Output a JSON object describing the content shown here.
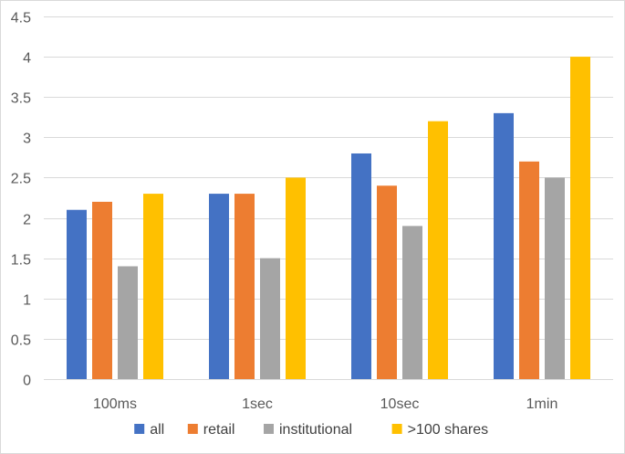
{
  "chart_data": {
    "type": "bar",
    "title": "",
    "xlabel": "",
    "ylabel": "",
    "categories": [
      "100ms",
      "1sec",
      "10sec",
      "1min"
    ],
    "ylim": [
      0,
      4.5
    ],
    "yticks": [
      0,
      0.5,
      1,
      1.5,
      2,
      2.5,
      3,
      3.5,
      4,
      4.5
    ],
    "ytick_labels": [
      "0",
      "0.5",
      "1",
      "1.5",
      "2",
      "2.5",
      "3",
      "3.5",
      "4",
      "4.5"
    ],
    "grid": true,
    "legend_position": "bottom",
    "series": [
      {
        "name": "all",
        "color": "#4472c4",
        "values": [
          2.1,
          2.3,
          2.8,
          3.3
        ]
      },
      {
        "name": "retail",
        "color": "#ed7d31",
        "values": [
          2.2,
          2.3,
          2.4,
          2.7
        ]
      },
      {
        "name": "institutional",
        "color": "#a5a5a5",
        "values": [
          1.4,
          1.5,
          1.9,
          2.5
        ]
      },
      {
        "name": ">100 shares",
        "color": "#ffc000",
        "values": [
          2.3,
          2.5,
          3.2,
          4.0
        ]
      }
    ]
  }
}
